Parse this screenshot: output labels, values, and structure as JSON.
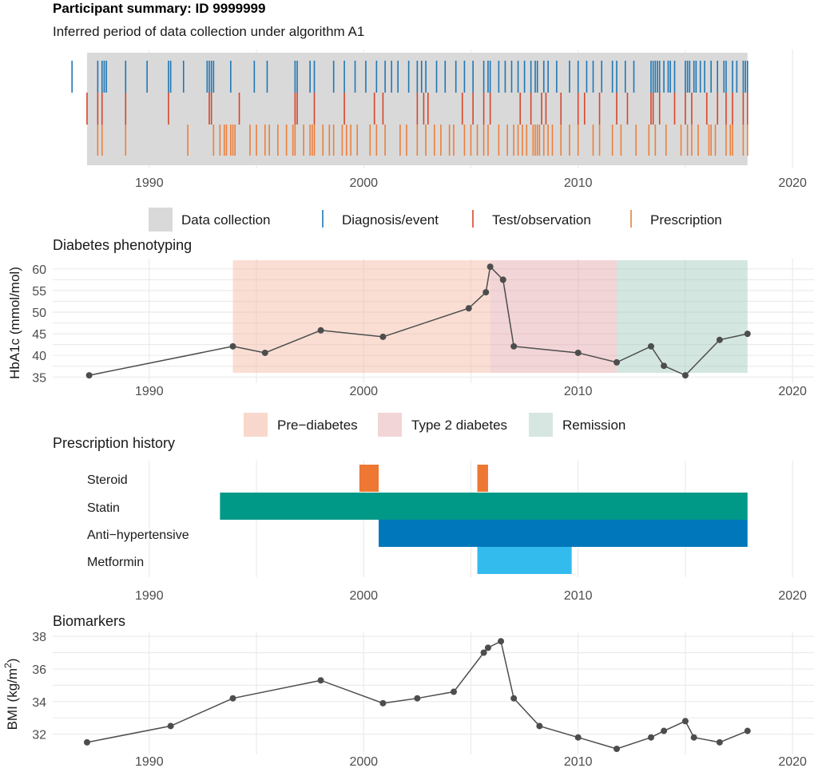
{
  "header": {
    "title": "Participant summary: ID 9999999",
    "subtitle": "Inferred period of data collection under algorithm A1"
  },
  "x_axis": {
    "range": [
      1985.5,
      2021
    ],
    "ticks": [
      1990,
      2000,
      2010,
      2020
    ]
  },
  "chart_data": [
    {
      "id": "data-collection",
      "type": "timeline",
      "title": "",
      "collection_period": [
        1987.1,
        2017.9
      ],
      "legend": {
        "position": "bottom",
        "items": [
          {
            "label": "Data collection",
            "color": "#d9d9d9",
            "kind": "box"
          },
          {
            "label": "Diagnosis/event",
            "color": "#2077b4",
            "kind": "line"
          },
          {
            "label": "Test/observation",
            "color": "#d6452a",
            "kind": "line"
          },
          {
            "label": "Prescription",
            "color": "#ec7f3b",
            "kind": "line"
          }
        ]
      },
      "series": [
        {
          "name": "Diagnosis/event",
          "color": "#2077b4",
          "x": [
            1986.4,
            1987.6,
            1987.8,
            1987.9,
            1988.0,
            1988.9,
            1989.9,
            1990.9,
            1991.0,
            1991.6,
            1992.7,
            1992.8,
            1992.9,
            1993.0,
            1993.8,
            1994.9,
            1995.5,
            1996.8,
            1996.9,
            1997.5,
            1997.7,
            1998.6,
            1999.1,
            1999.6,
            2000.1,
            2000.6,
            2001.0,
            2001.3,
            2001.6,
            2002.1,
            2002.5,
            2002.7,
            2002.9,
            2003.4,
            2003.8,
            2004.3,
            2004.7,
            2005.1,
            2005.6,
            2005.8,
            2005.9,
            2006.3,
            2006.6,
            2006.9,
            2007.2,
            2007.5,
            2007.8,
            2008.0,
            2008.1,
            2008.4,
            2008.6,
            2009.0,
            2009.6,
            2010.0,
            2010.4,
            2010.7,
            2011.1,
            2011.6,
            2011.8,
            2012.2,
            2012.6,
            2013.4,
            2013.5,
            2013.6,
            2013.7,
            2013.8,
            2014.0,
            2014.2,
            2014.3,
            2014.5,
            2015.0,
            2015.1,
            2015.2,
            2015.4,
            2015.5,
            2015.7,
            2015.9,
            2016.2,
            2016.5,
            2016.8,
            2016.9,
            2017.2,
            2017.4,
            2017.7,
            2017.8,
            2017.9
          ],
          "band": 0
        },
        {
          "name": "Test/observation",
          "color": "#d6452a",
          "x": [
            1987.1,
            1987.6,
            1987.8,
            1988.9,
            1990.9,
            1992.8,
            1992.9,
            1994.2,
            1996.8,
            1996.9,
            1997.7,
            1999.1,
            2000.5,
            2000.9,
            2002.5,
            2002.8,
            2003.0,
            2004.6,
            2005.1,
            2005.6,
            2005.9,
            2007.3,
            2007.8,
            2008.3,
            2008.5,
            2009.2,
            2010.0,
            2010.3,
            2011.0,
            2011.8,
            2012.3,
            2013.4,
            2013.5,
            2013.8,
            2014.5,
            2015.0,
            2015.3,
            2016.0,
            2016.5,
            2016.9,
            2017.2,
            2017.7,
            2017.9
          ],
          "band": 1
        },
        {
          "name": "Prescription",
          "color": "#ec7f3b",
          "x": [
            1987.6,
            1987.8,
            1988.9,
            1991.8,
            1993.0,
            1993.3,
            1993.5,
            1993.6,
            1993.8,
            1993.9,
            1994.0,
            1994.7,
            1995.0,
            1995.4,
            1995.6,
            1996.0,
            1996.4,
            1996.7,
            1996.8,
            1997.2,
            1997.5,
            1997.6,
            1997.7,
            1998.1,
            1998.4,
            1998.6,
            1999.0,
            1999.2,
            1999.4,
            1999.7,
            2000.3,
            2000.6,
            2001.0,
            2001.7,
            2002.0,
            2002.5,
            2002.9,
            2003.3,
            2003.6,
            2004.0,
            2004.2,
            2004.7,
            2005.0,
            2005.3,
            2005.6,
            2005.8,
            2006.3,
            2006.7,
            2007.0,
            2007.2,
            2007.4,
            2007.6,
            2007.9,
            2008.0,
            2008.1,
            2008.2,
            2008.4,
            2008.6,
            2008.8,
            2009.2,
            2009.6,
            2010.0,
            2010.7,
            2011.0,
            2011.6,
            2012.0,
            2012.7,
            2013.3,
            2013.6,
            2014.1,
            2014.8,
            2015.1,
            2015.3,
            2015.6,
            2016.1,
            2016.2,
            2016.4,
            2016.9,
            2017.1,
            2017.2,
            2017.7,
            2017.9
          ],
          "band": 2
        }
      ]
    },
    {
      "id": "diabetes-phenotyping",
      "type": "line",
      "title": "Diabetes phenotyping",
      "ylabel": "HbA1c (mmol/mol)",
      "ylim": [
        34.5,
        62
      ],
      "yticks": [
        35,
        40,
        45,
        50,
        55,
        60
      ],
      "regions": [
        {
          "label": "Pre−diabetes",
          "from": 1993.9,
          "to": 2005.9,
          "color": "#f5b59f",
          "opacity": 0.45
        },
        {
          "label": "Type 2 diabetes",
          "from": 2005.9,
          "to": 2011.8,
          "color": "#e3a1a4",
          "opacity": 0.45
        },
        {
          "label": "Remission",
          "from": 2011.8,
          "to": 2017.9,
          "color": "#9fc7ba",
          "opacity": 0.45
        }
      ],
      "legend": {
        "position": "bottom",
        "items": [
          {
            "label": "Pre−diabetes",
            "color": "#f8d8cc"
          },
          {
            "label": "Type 2 diabetes",
            "color": "#f2d5d6"
          },
          {
            "label": "Remission",
            "color": "#d6e6e1"
          }
        ]
      },
      "x": [
        1987.2,
        1993.9,
        1995.4,
        1998.0,
        2000.9,
        2004.9,
        2005.7,
        2005.9,
        2006.5,
        2007.0,
        2010.0,
        2011.8,
        2013.4,
        2014.0,
        2015.0,
        2016.6,
        2017.9
      ],
      "y": [
        35.4,
        42.1,
        40.6,
        45.8,
        44.3,
        50.9,
        54.6,
        60.5,
        57.5,
        42.1,
        40.6,
        38.4,
        42.1,
        37.6,
        35.4,
        43.6,
        45.0
      ],
      "color": "#4d4d4d"
    },
    {
      "id": "prescription-history",
      "type": "bar",
      "orientation": "horizontal",
      "title": "Prescription history",
      "categories": [
        "Steroid",
        "Statin",
        "Anti−hypertensive",
        "Metformin"
      ],
      "bars": [
        {
          "category": "Steroid",
          "from": 1999.8,
          "to": 2000.7,
          "color": "#ee7733"
        },
        {
          "category": "Steroid",
          "from": 2005.3,
          "to": 2005.8,
          "color": "#ee7733"
        },
        {
          "category": "Statin",
          "from": 1993.3,
          "to": 2017.9,
          "color": "#009988"
        },
        {
          "category": "Anti−hypertensive",
          "from": 2000.7,
          "to": 2017.9,
          "color": "#0077bb"
        },
        {
          "category": "Metformin",
          "from": 2005.3,
          "to": 2009.7,
          "color": "#33bbee"
        }
      ]
    },
    {
      "id": "biomarkers",
      "type": "line",
      "title": "Biomarkers",
      "ylabel": "BMI (kg/m",
      "ylabel_sup": "2",
      "ylabel_end": ")",
      "ylim": [
        31.1,
        38.2
      ],
      "yticks": [
        32,
        34,
        36,
        38
      ],
      "x": [
        1987.1,
        1991.0,
        1993.9,
        1998.0,
        2000.9,
        2002.5,
        2004.2,
        2005.6,
        2005.8,
        2006.4,
        2007.0,
        2008.2,
        2010.0,
        2011.8,
        2013.4,
        2014.0,
        2015.0,
        2015.4,
        2016.6,
        2017.9
      ],
      "y": [
        31.5,
        32.5,
        34.2,
        35.3,
        33.9,
        34.2,
        34.6,
        37.0,
        37.3,
        37.7,
        34.2,
        32.5,
        31.8,
        31.1,
        31.8,
        32.2,
        32.8,
        31.8,
        31.5,
        32.2
      ],
      "color": "#4d4d4d"
    }
  ]
}
